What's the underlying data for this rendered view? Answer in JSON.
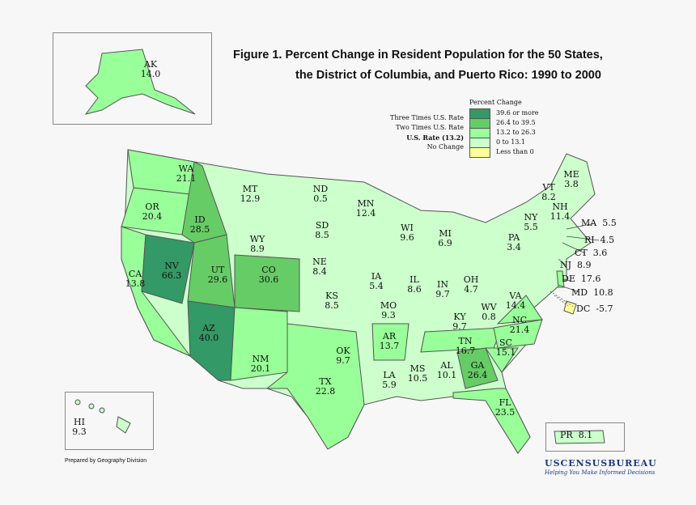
{
  "title": {
    "line1": "Figure 1.  Percent Change in Resident Population for the 50 States,",
    "line2": "the District of Columbia, and Puerto Rico: 1990 to 2000"
  },
  "legend": {
    "heading": "Percent Change",
    "classes": [
      {
        "range": "39.6 or more",
        "color": "#339966",
        "label": "Three Times U.S. Rate"
      },
      {
        "range": "26.4 to 39.5",
        "color": "#66cc66",
        "label": "Two Times U.S. Rate"
      },
      {
        "range": "13.2 to 26.3",
        "color": "#99ff99",
        "label": "U.S. Rate (13.2)"
      },
      {
        "range": "0 to 13.1",
        "color": "#ccffcc",
        "label": "No Change"
      },
      {
        "range": "Less than 0",
        "color": "#ffff99",
        "label": ""
      }
    ]
  },
  "states": {
    "AK": "14.0",
    "HI": "9.3",
    "PR": "8.1",
    "WA": "21.1",
    "OR": "20.4",
    "CA": "13.8",
    "NV": "66.3",
    "ID": "28.5",
    "MT": "12.9",
    "WY": "8.9",
    "UT": "29.6",
    "CO": "30.6",
    "AZ": "40.0",
    "NM": "20.1",
    "ND": "0.5",
    "SD": "8.5",
    "NE": "8.4",
    "KS": "8.5",
    "OK": "9.7",
    "TX": "22.8",
    "MN": "12.4",
    "IA": "5.4",
    "MO": "9.3",
    "AR": "13.7",
    "LA": "5.9",
    "WI": "9.6",
    "IL": "8.6",
    "MI": "6.9",
    "IN": "9.7",
    "OH": "4.7",
    "KY": "9.7",
    "TN": "16.7",
    "MS": "10.5",
    "AL": "10.1",
    "GA": "26.4",
    "FL": "23.5",
    "SC": "15.1",
    "NC": "21.4",
    "VA": "14.4",
    "WV": "0.8",
    "PA": "3.4",
    "NY": "5.5",
    "VT": "8.2",
    "NH": "11.4",
    "ME": "3.8",
    "MA": "5.5",
    "RI": "4.5",
    "CT": "3.6",
    "NJ": "8.9",
    "DE": "17.6",
    "MD": "10.8",
    "DC": "-5.7"
  },
  "footer": {
    "prepared": "Prepared by Geography Division",
    "agency": "USCENSUSBUREAU",
    "tagline": "Helping You Make Informed Decisions"
  }
}
